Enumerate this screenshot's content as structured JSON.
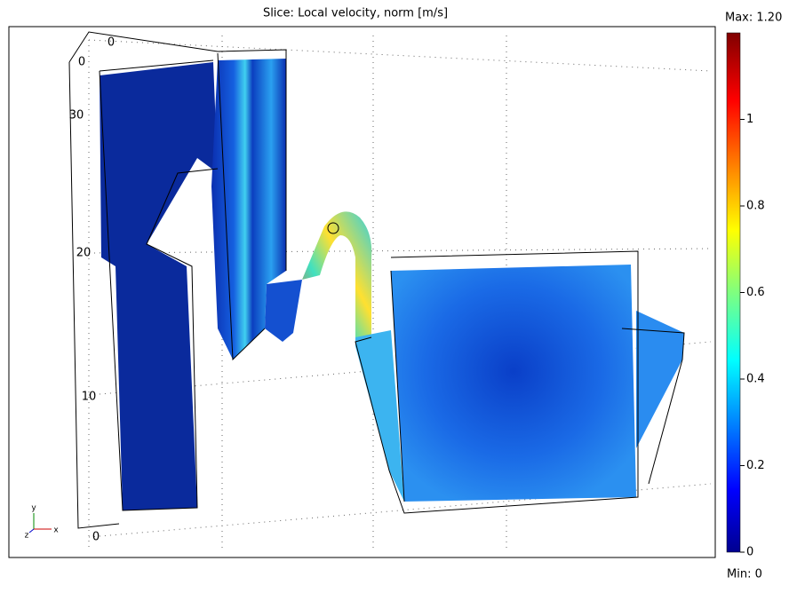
{
  "title": "Slice: Local velocity, norm [m/s]",
  "colorbar": {
    "lim": [
      0,
      1.2
    ],
    "ticks": [
      0,
      0.2,
      0.4,
      0.6,
      0.8,
      1
    ],
    "max_label": "Max: 1.20",
    "min_label": "Min: 0"
  },
  "axis_labels": [
    "0",
    "0",
    "30",
    "20",
    "10",
    "0"
  ],
  "triad": [
    "y",
    "z",
    "x"
  ]
}
